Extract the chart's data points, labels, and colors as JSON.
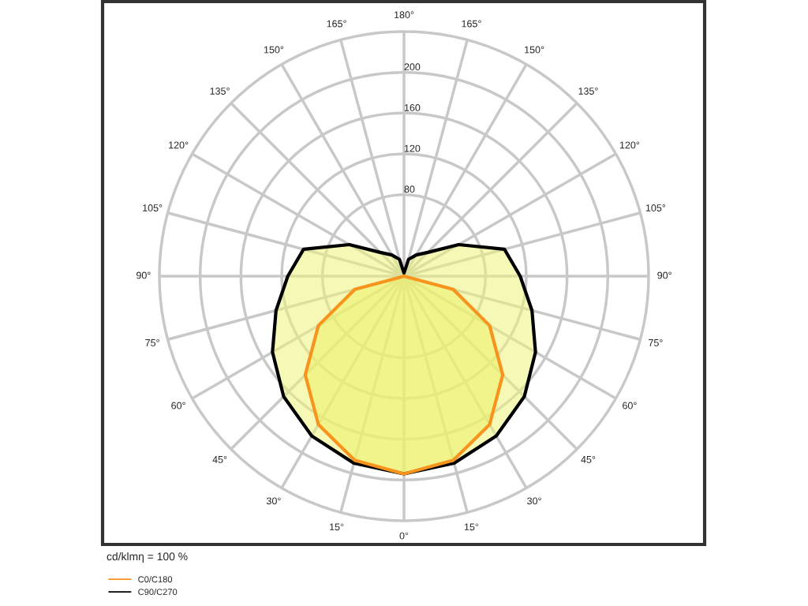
{
  "chart_data": {
    "type": "radar",
    "categories": [
      "180°",
      "165°",
      "150°",
      "135°",
      "120°",
      "105°",
      "90°",
      "75°",
      "60°",
      "45°",
      "30°",
      "15°",
      "0°",
      "15°",
      "30°",
      "45°",
      "60°",
      "75°",
      "90°",
      "105°",
      "120°",
      "135°",
      "150°",
      "165°"
    ],
    "series": [
      {
        "name": "C0/C180",
        "color": "#f7941d",
        "values": [
          0,
          0,
          0,
          0,
          0,
          0,
          0,
          50,
          97,
          137,
          168,
          187,
          194,
          187,
          168,
          137,
          97,
          50,
          0,
          0,
          0,
          0,
          0,
          0
        ]
      },
      {
        "name": "C90/C270",
        "color": "#000000",
        "values": [
          3,
          17,
          24,
          33,
          62,
          102,
          114,
          130,
          149,
          167,
          181,
          190,
          194,
          190,
          181,
          167,
          149,
          130,
          114,
          102,
          62,
          33,
          24,
          17
        ]
      }
    ],
    "ylim": [
      0,
      240
    ],
    "yticks": [
      80,
      120,
      160,
      200
    ],
    "grid": true,
    "legend": "bottom left",
    "annotations": [
      "cd/klmη = 100 %"
    ]
  }
}
